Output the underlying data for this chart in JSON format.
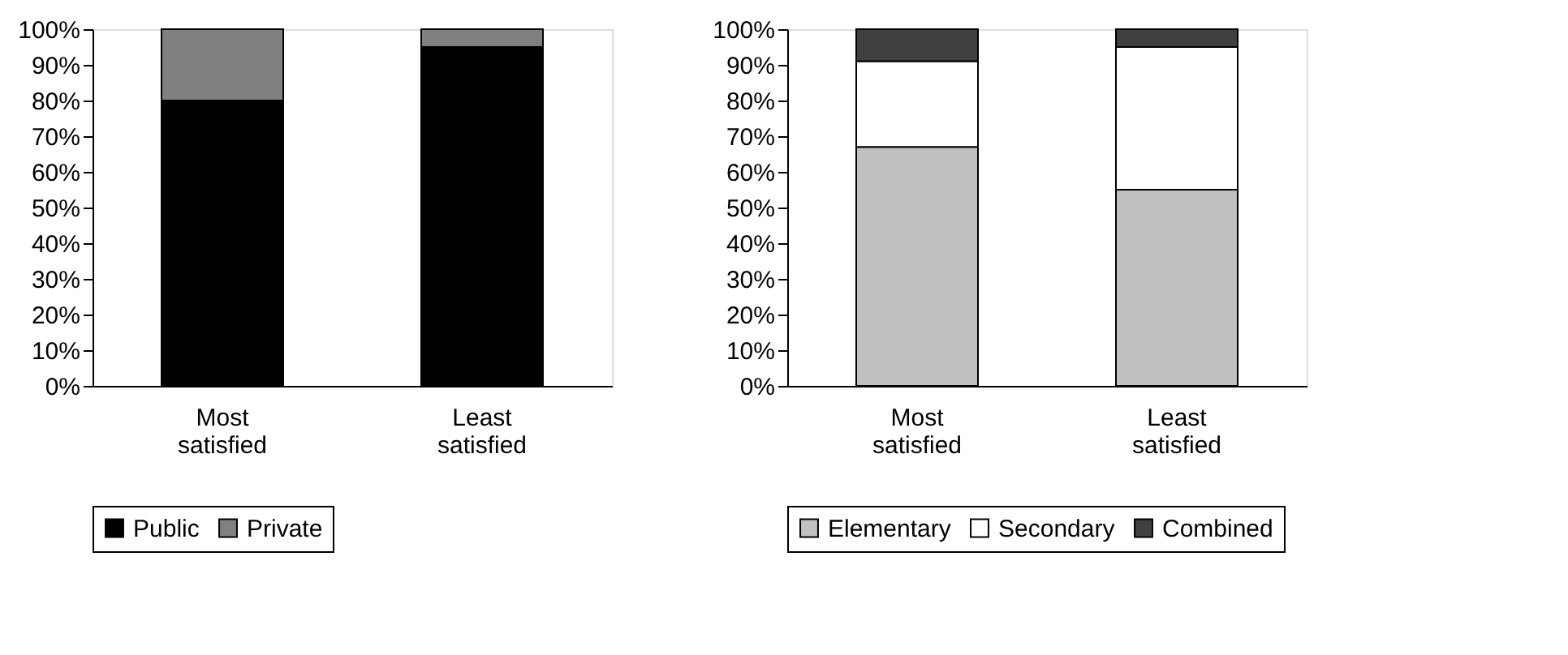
{
  "chart_data": [
    {
      "type": "bar",
      "stacked": true,
      "categories": [
        "Most satisfied",
        "Least satisfied"
      ],
      "ylim": [
        0,
        100
      ],
      "yticks": [
        {
          "value": 0,
          "label": "0%"
        },
        {
          "value": 10,
          "label": "10%"
        },
        {
          "value": 20,
          "label": "20%"
        },
        {
          "value": 30,
          "label": "30%"
        },
        {
          "value": 40,
          "label": "40%"
        },
        {
          "value": 50,
          "label": "50%"
        },
        {
          "value": 60,
          "label": "60%"
        },
        {
          "value": 70,
          "label": "70%"
        },
        {
          "value": 80,
          "label": "80%"
        },
        {
          "value": 90,
          "label": "90%"
        },
        {
          "value": 100,
          "label": "100%"
        }
      ],
      "grid": false,
      "legend": "bottom",
      "series": [
        {
          "name": "Public",
          "color": "#000000",
          "values": [
            80,
            95
          ]
        },
        {
          "name": "Private",
          "color": "#808080",
          "values": [
            20,
            5
          ]
        }
      ]
    },
    {
      "type": "bar",
      "stacked": true,
      "categories": [
        "Most satisfied",
        "Least satisfied"
      ],
      "ylim": [
        0,
        100
      ],
      "yticks": [
        {
          "value": 0,
          "label": "0%"
        },
        {
          "value": 10,
          "label": "10%"
        },
        {
          "value": 20,
          "label": "20%"
        },
        {
          "value": 30,
          "label": "30%"
        },
        {
          "value": 40,
          "label": "40%"
        },
        {
          "value": 50,
          "label": "50%"
        },
        {
          "value": 60,
          "label": "60%"
        },
        {
          "value": 70,
          "label": "70%"
        },
        {
          "value": 80,
          "label": "80%"
        },
        {
          "value": 90,
          "label": "90%"
        },
        {
          "value": 100,
          "label": "100%"
        }
      ],
      "grid": false,
      "legend": "bottom",
      "series": [
        {
          "name": "Elementary",
          "color": "#c0c0c0",
          "values": [
            67,
            55
          ]
        },
        {
          "name": "Secondary",
          "color": "#ffffff",
          "values": [
            24,
            40
          ]
        },
        {
          "name": "Combined",
          "color": "#404040",
          "values": [
            9,
            5
          ]
        }
      ]
    }
  ]
}
